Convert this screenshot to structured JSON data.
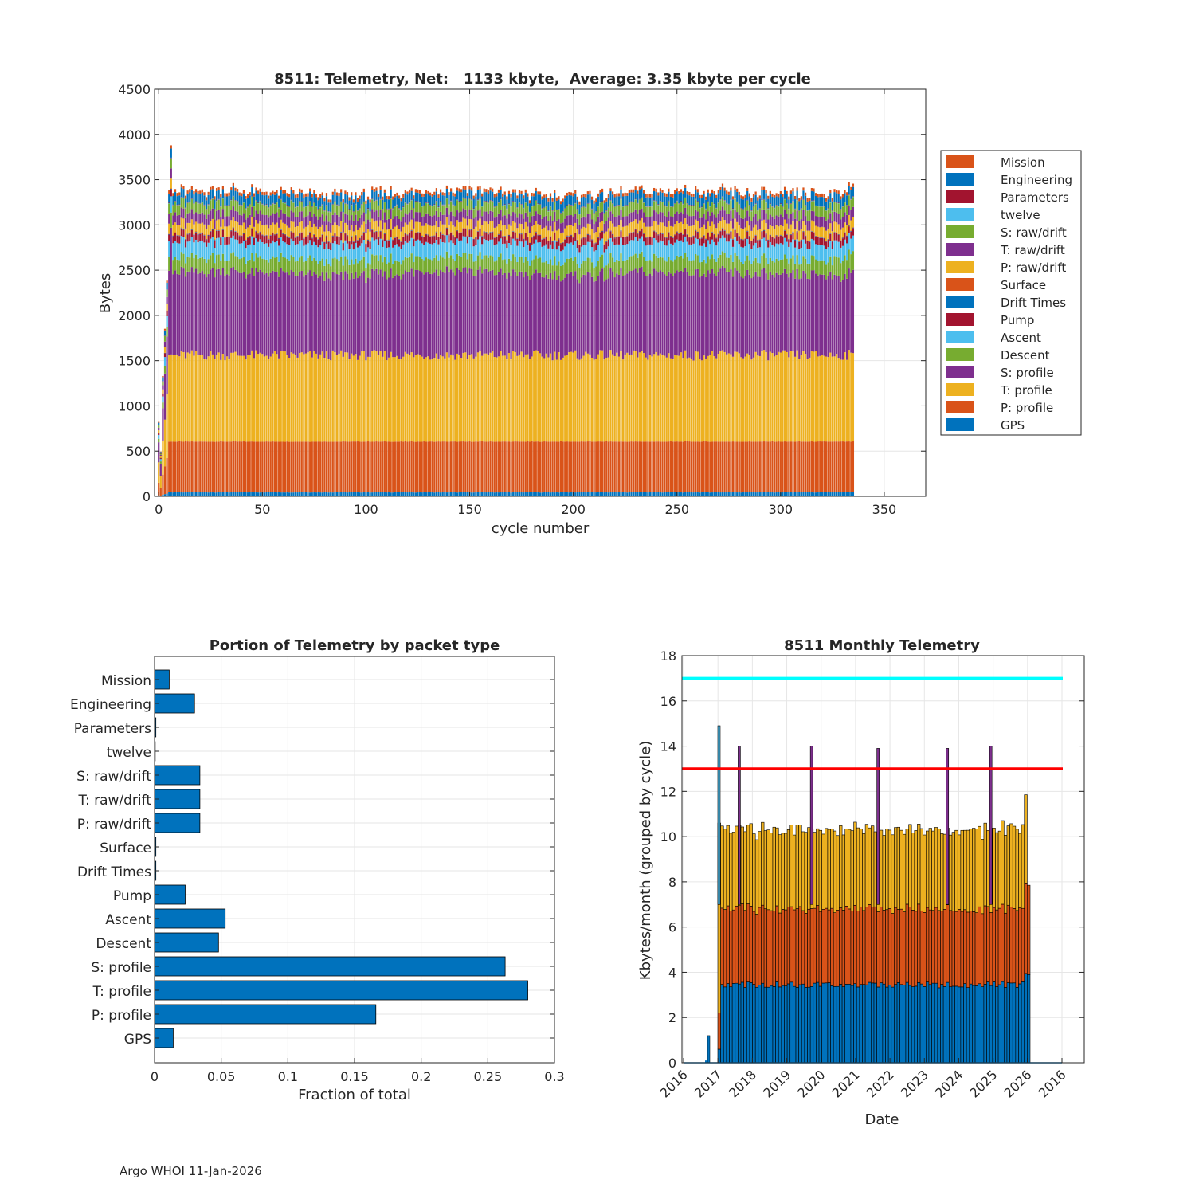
{
  "footer": "Argo WHOI 11-Jan-2026",
  "colors": {
    "orange": "#D95319",
    "blue": "#0072BD",
    "darkred": "#A2142F",
    "lightblue": "#4DBEEE",
    "green": "#77AC30",
    "purple": "#7E2F8E",
    "yellow": "#EDB120",
    "cyan": "#00FFFF",
    "red": "#FF0000"
  },
  "chart_data": [
    {
      "type": "stacked-bar",
      "title": "8511: Telemetry, Net:   1133 kbyte,  Average: 3.35 kbyte per cycle",
      "xlabel": "cycle number",
      "ylabel": "Bytes",
      "xlim": [
        -2,
        370
      ],
      "ylim": [
        0,
        4500
      ],
      "xticks": [
        0,
        50,
        100,
        150,
        200,
        250,
        300,
        350
      ],
      "yticks": [
        0,
        500,
        1000,
        1500,
        2000,
        2500,
        3000,
        3500,
        4000,
        4500
      ],
      "n_cycles": 336,
      "legend_position": "outside-right",
      "series_typical_bytes": [
        {
          "name": "GPS",
          "color": "blue",
          "value": 45
        },
        {
          "name": "P: profile",
          "color": "orange",
          "value": 560
        },
        {
          "name": "T: profile",
          "color": "yellow",
          "value": 955
        },
        {
          "name": "S: profile",
          "color": "purple",
          "value": 900
        },
        {
          "name": "Descent",
          "color": "green",
          "value": 160
        },
        {
          "name": "Ascent",
          "color": "lightblue",
          "value": 175
        },
        {
          "name": "Pump",
          "color": "darkred",
          "value": 80
        },
        {
          "name": "Drift Times",
          "color": "blue",
          "value": 5
        },
        {
          "name": "Surface",
          "color": "orange",
          "value": 5
        },
        {
          "name": "P: raw/drift",
          "color": "yellow",
          "value": 110
        },
        {
          "name": "T: raw/drift",
          "color": "purple",
          "value": 110
        },
        {
          "name": "S: raw/drift",
          "color": "green",
          "value": 110
        },
        {
          "name": "twelve",
          "color": "lightblue",
          "value": 3
        },
        {
          "name": "Parameters",
          "color": "darkred",
          "value": 5
        },
        {
          "name": "Engineering",
          "color": "blue",
          "value": 100
        },
        {
          "name": "Mission",
          "color": "orange",
          "value": 35
        }
      ],
      "legend": [
        "Mission",
        "Engineering",
        "Parameters",
        "twelve",
        "S: raw/drift",
        "T: raw/drift",
        "P: raw/drift",
        "Surface",
        "Drift Times",
        "Pump",
        "Ascent",
        "Descent",
        "S: profile",
        "T: profile",
        "P: profile",
        "GPS"
      ]
    },
    {
      "type": "bar",
      "orientation": "horizontal",
      "title": "Portion of Telemetry by packet type",
      "xlabel": "Fraction of total",
      "ylabel": "",
      "xlim": [
        0,
        0.3
      ],
      "xticks": [
        0,
        0.05,
        0.1,
        0.15,
        0.2,
        0.25,
        0.3
      ],
      "xtick_labels": [
        "0",
        "0.05",
        "0.1",
        "0.15",
        "0.2",
        "0.25",
        "0.3"
      ],
      "categories": [
        "Mission",
        "Engineering",
        "Parameters",
        "twelve",
        "S: raw/drift",
        "T: raw/drift",
        "P: raw/drift",
        "Surface",
        "Drift Times",
        "Pump",
        "Ascent",
        "Descent",
        "S: profile",
        "T: profile",
        "P: profile",
        "GPS"
      ],
      "values": [
        0.011,
        0.03,
        0.001,
        0.0005,
        0.034,
        0.034,
        0.034,
        0.001,
        0.001,
        0.023,
        0.053,
        0.048,
        0.263,
        0.28,
        0.166,
        0.014
      ]
    },
    {
      "type": "bar",
      "title": "8511 Monthly Telemetry",
      "xlabel": "Date",
      "ylabel": "Kbytes/month (grouped by cycle)",
      "ylim": [
        0,
        18
      ],
      "yticks": [
        0,
        2,
        4,
        6,
        8,
        10,
        12,
        14,
        16,
        18
      ],
      "xtick_labels": [
        "2016",
        "2017",
        "2018",
        "2019",
        "2020",
        "2021",
        "2022",
        "2023",
        "2024",
        "2025",
        "2026",
        "2016"
      ],
      "reference_lines": [
        {
          "value": 17,
          "color": "cyan"
        },
        {
          "value": 13,
          "color": "red"
        }
      ],
      "n_months": 108,
      "typical_stack_kbytes": {
        "bottom_blue": 3.45,
        "middle_orange": 3.35,
        "top_yellow": 3.5
      },
      "spikes": [
        {
          "month_index": 0,
          "value": 14.9,
          "color": "lightblue"
        },
        {
          "month_index": 7,
          "value": 14.0,
          "color": "purple"
        },
        {
          "month_index": 32,
          "value": 14.0,
          "color": "purple"
        },
        {
          "month_index": 55,
          "value": 13.9,
          "color": "purple"
        },
        {
          "month_index": 79,
          "value": 13.9,
          "color": "purple"
        },
        {
          "month_index": 94,
          "value": 14.0,
          "color": "purple"
        }
      ]
    }
  ]
}
